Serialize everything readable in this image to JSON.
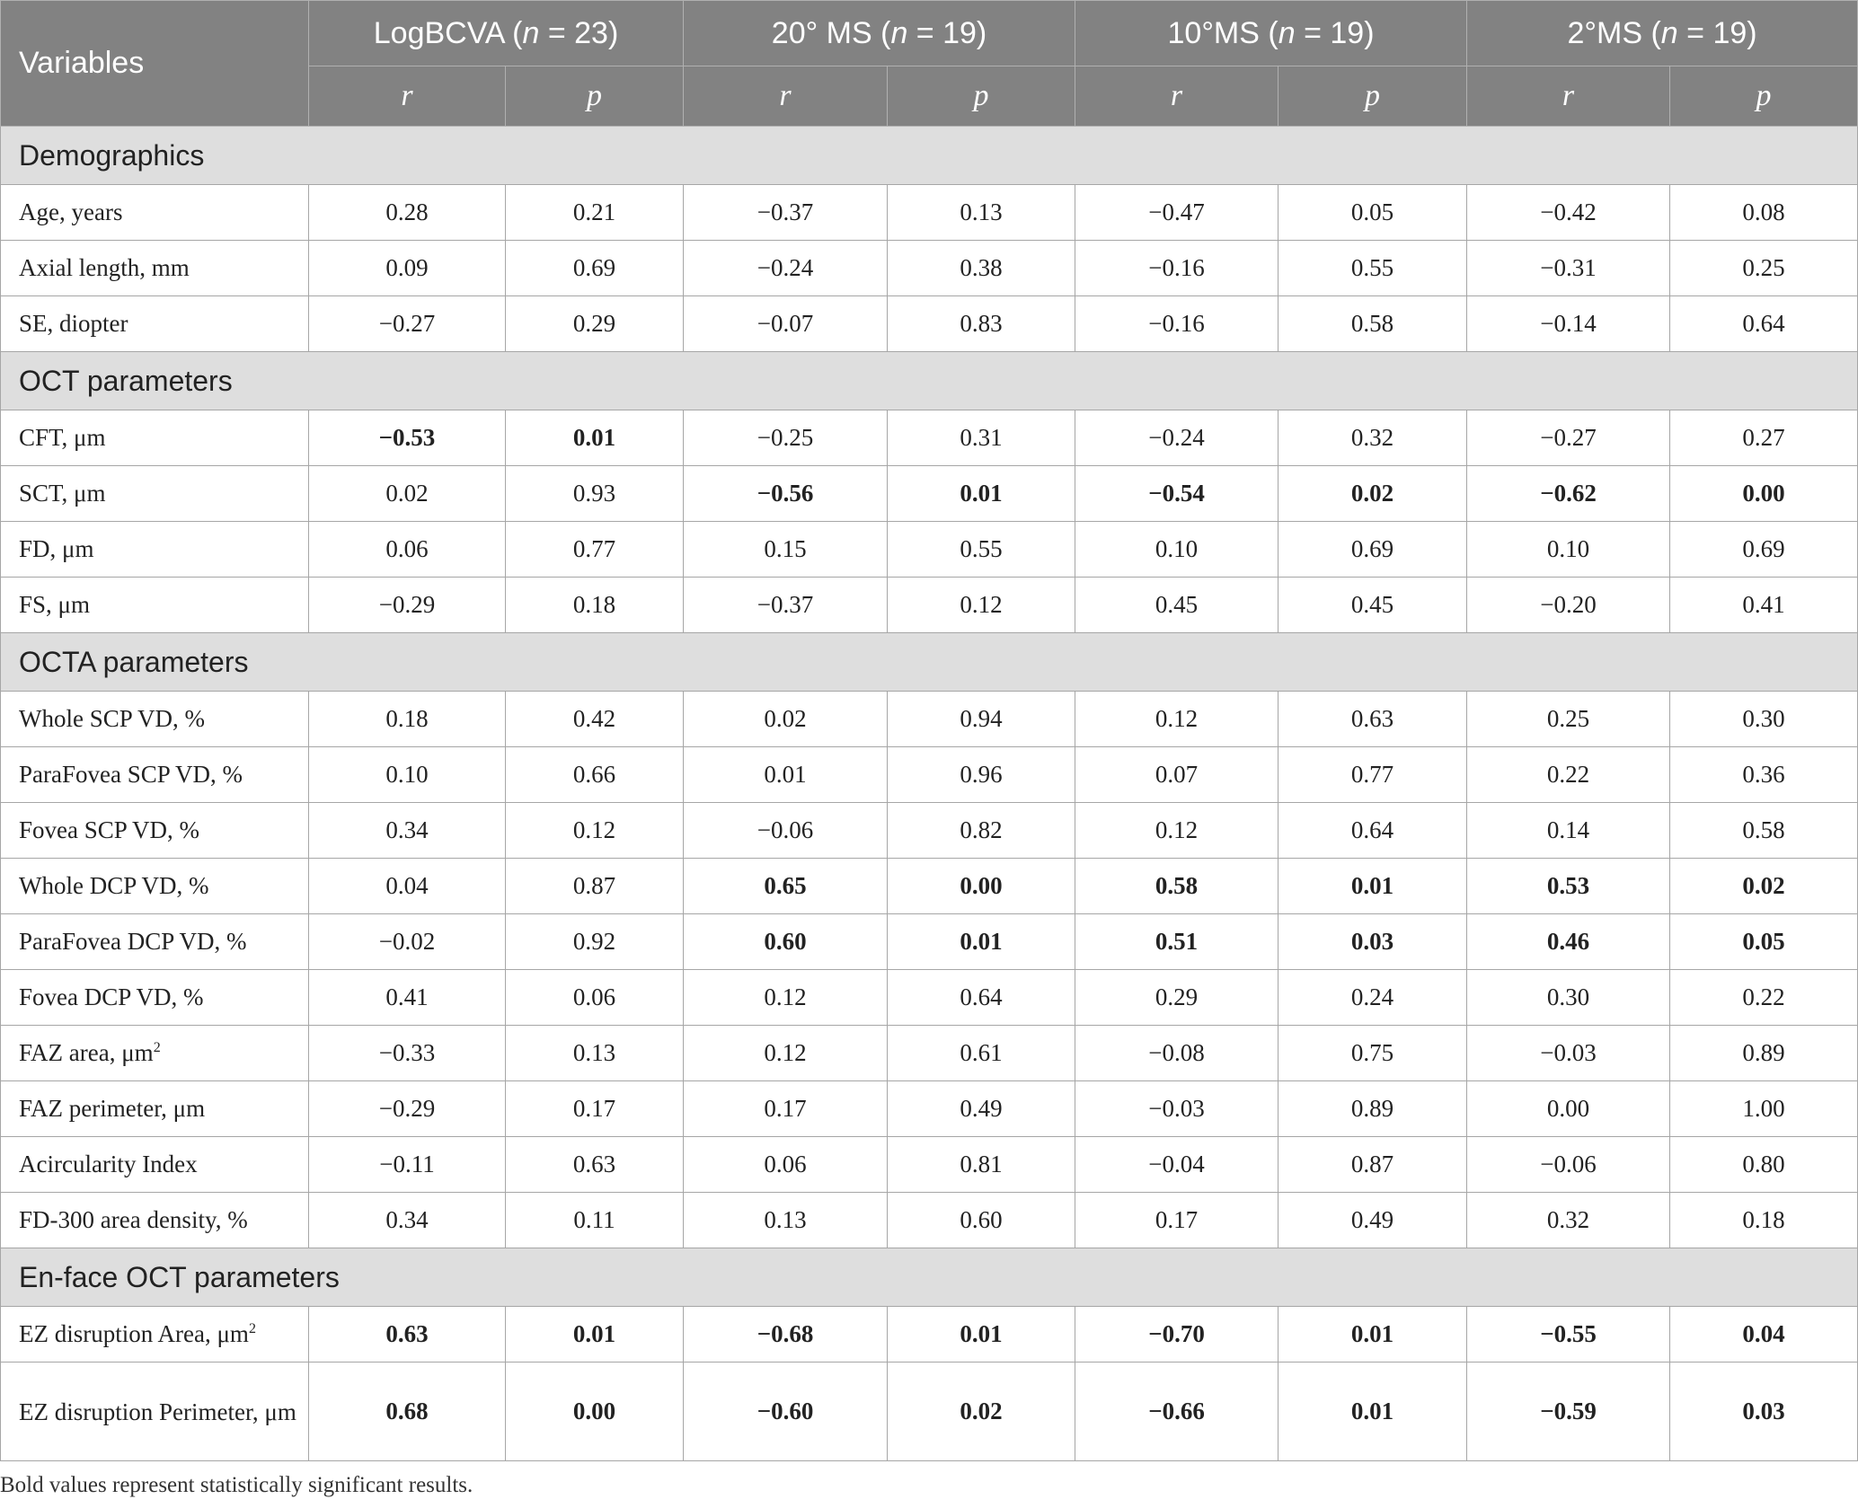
{
  "table": {
    "header": {
      "variables_label": "Variables",
      "groups": [
        {
          "name": "LogBCVA",
          "n_open": " (",
          "n_symbol": "n",
          "n_value": " = 23)"
        },
        {
          "name": "20° MS",
          "n_open": " (",
          "n_symbol": "n",
          "n_value": " = 19)"
        },
        {
          "name": "10°MS",
          "n_open": " (",
          "n_symbol": "n",
          "n_value": " = 19)"
        },
        {
          "name": "2°MS",
          "n_open": " (",
          "n_symbol": "n",
          "n_value": " = 19)"
        }
      ],
      "r_label": "r",
      "p_label": "p"
    },
    "sections": [
      {
        "title": "Demographics",
        "rows": [
          {
            "label": "Age, years",
            "values": [
              "0.28",
              "0.21",
              "−0.37",
              "0.13",
              "−0.47",
              "0.05",
              "−0.42",
              "0.08"
            ],
            "bold": [
              false,
              false,
              false,
              false,
              false,
              false,
              false,
              false
            ]
          },
          {
            "label": "Axial length, mm",
            "values": [
              "0.09",
              "0.69",
              "−0.24",
              "0.38",
              "−0.16",
              "0.55",
              "−0.31",
              "0.25"
            ],
            "bold": [
              false,
              false,
              false,
              false,
              false,
              false,
              false,
              false
            ]
          },
          {
            "label": "SE, diopter",
            "values": [
              "−0.27",
              "0.29",
              "−0.07",
              "0.83",
              "−0.16",
              "0.58",
              "−0.14",
              "0.64"
            ],
            "bold": [
              false,
              false,
              false,
              false,
              false,
              false,
              false,
              false
            ]
          }
        ]
      },
      {
        "title": "OCT parameters",
        "rows": [
          {
            "label": "CFT, μm",
            "values": [
              "−0.53",
              "0.01",
              "−0.25",
              "0.31",
              "−0.24",
              "0.32",
              "−0.27",
              "0.27"
            ],
            "bold": [
              true,
              true,
              false,
              false,
              false,
              false,
              false,
              false
            ]
          },
          {
            "label": "SCT, μm",
            "values": [
              "0.02",
              "0.93",
              "−0.56",
              "0.01",
              "−0.54",
              "0.02",
              "−0.62",
              "0.00"
            ],
            "bold": [
              false,
              false,
              true,
              true,
              true,
              true,
              true,
              true
            ]
          },
          {
            "label": "FD, μm",
            "values": [
              "0.06",
              "0.77",
              "0.15",
              "0.55",
              "0.10",
              "0.69",
              "0.10",
              "0.69"
            ],
            "bold": [
              false,
              false,
              false,
              false,
              false,
              false,
              false,
              false
            ]
          },
          {
            "label": "FS, μm",
            "values": [
              "−0.29",
              "0.18",
              "−0.37",
              "0.12",
              "0.45",
              "0.45",
              "−0.20",
              "0.41"
            ],
            "bold": [
              false,
              false,
              false,
              false,
              false,
              false,
              false,
              false
            ]
          }
        ]
      },
      {
        "title": "OCTA parameters",
        "rows": [
          {
            "label": "Whole SCP VD, %",
            "values": [
              "0.18",
              "0.42",
              "0.02",
              "0.94",
              "0.12",
              "0.63",
              "0.25",
              "0.30"
            ],
            "bold": [
              false,
              false,
              false,
              false,
              false,
              false,
              false,
              false
            ]
          },
          {
            "label": "ParaFovea SCP VD, %",
            "values": [
              "0.10",
              "0.66",
              "0.01",
              "0.96",
              "0.07",
              "0.77",
              "0.22",
              "0.36"
            ],
            "bold": [
              false,
              false,
              false,
              false,
              false,
              false,
              false,
              false
            ]
          },
          {
            "label": "Fovea SCP VD, %",
            "values": [
              "0.34",
              "0.12",
              "−0.06",
              "0.82",
              "0.12",
              "0.64",
              "0.14",
              "0.58"
            ],
            "bold": [
              false,
              false,
              false,
              false,
              false,
              false,
              false,
              false
            ]
          },
          {
            "label": "Whole DCP VD, %",
            "values": [
              "0.04",
              "0.87",
              "0.65",
              "0.00",
              "0.58",
              "0.01",
              "0.53",
              "0.02"
            ],
            "bold": [
              false,
              false,
              true,
              true,
              true,
              true,
              true,
              true
            ]
          },
          {
            "label": "ParaFovea DCP VD, %",
            "values": [
              "−0.02",
              "0.92",
              "0.60",
              "0.01",
              "0.51",
              "0.03",
              "0.46",
              "0.05"
            ],
            "bold": [
              false,
              false,
              true,
              true,
              true,
              true,
              true,
              true
            ]
          },
          {
            "label": "Fovea DCP VD, %",
            "values": [
              "0.41",
              "0.06",
              "0.12",
              "0.64",
              "0.29",
              "0.24",
              "0.30",
              "0.22"
            ],
            "bold": [
              false,
              false,
              false,
              false,
              false,
              false,
              false,
              false
            ]
          },
          {
            "label": "FAZ area, μm",
            "sup": "2",
            "values": [
              "−0.33",
              "0.13",
              "0.12",
              "0.61",
              "−0.08",
              "0.75",
              "−0.03",
              "0.89"
            ],
            "bold": [
              false,
              false,
              false,
              false,
              false,
              false,
              false,
              false
            ]
          },
          {
            "label": "FAZ perimeter, μm",
            "values": [
              "−0.29",
              "0.17",
              "0.17",
              "0.49",
              "−0.03",
              "0.89",
              "0.00",
              "1.00"
            ],
            "bold": [
              false,
              false,
              false,
              false,
              false,
              false,
              false,
              false
            ]
          },
          {
            "label": "Acircularity Index",
            "values": [
              "−0.11",
              "0.63",
              "0.06",
              "0.81",
              "−0.04",
              "0.87",
              "−0.06",
              "0.80"
            ],
            "bold": [
              false,
              false,
              false,
              false,
              false,
              false,
              false,
              false
            ]
          },
          {
            "label": "FD-300 area density, %",
            "values": [
              "0.34",
              "0.11",
              "0.13",
              "0.60",
              "0.17",
              "0.49",
              "0.32",
              "0.18"
            ],
            "bold": [
              false,
              false,
              false,
              false,
              false,
              false,
              false,
              false
            ]
          }
        ]
      },
      {
        "title": "En-face OCT parameters",
        "rows": [
          {
            "label": "EZ disruption Area, μm",
            "sup": "2",
            "values": [
              "0.63",
              "0.01",
              "−0.68",
              "0.01",
              "−0.70",
              "0.01",
              "−0.55",
              "0.04"
            ],
            "bold": [
              true,
              true,
              true,
              true,
              true,
              true,
              true,
              true
            ]
          },
          {
            "label": "EZ disruption Perimeter, μm",
            "tall": true,
            "values": [
              "0.68",
              "0.00",
              "−0.60",
              "0.02",
              "−0.66",
              "0.01",
              "−0.59",
              "0.03"
            ],
            "bold": [
              true,
              true,
              true,
              true,
              true,
              true,
              true,
              true
            ]
          }
        ]
      }
    ]
  },
  "footnote": "Bold values represent statistically significant results."
}
